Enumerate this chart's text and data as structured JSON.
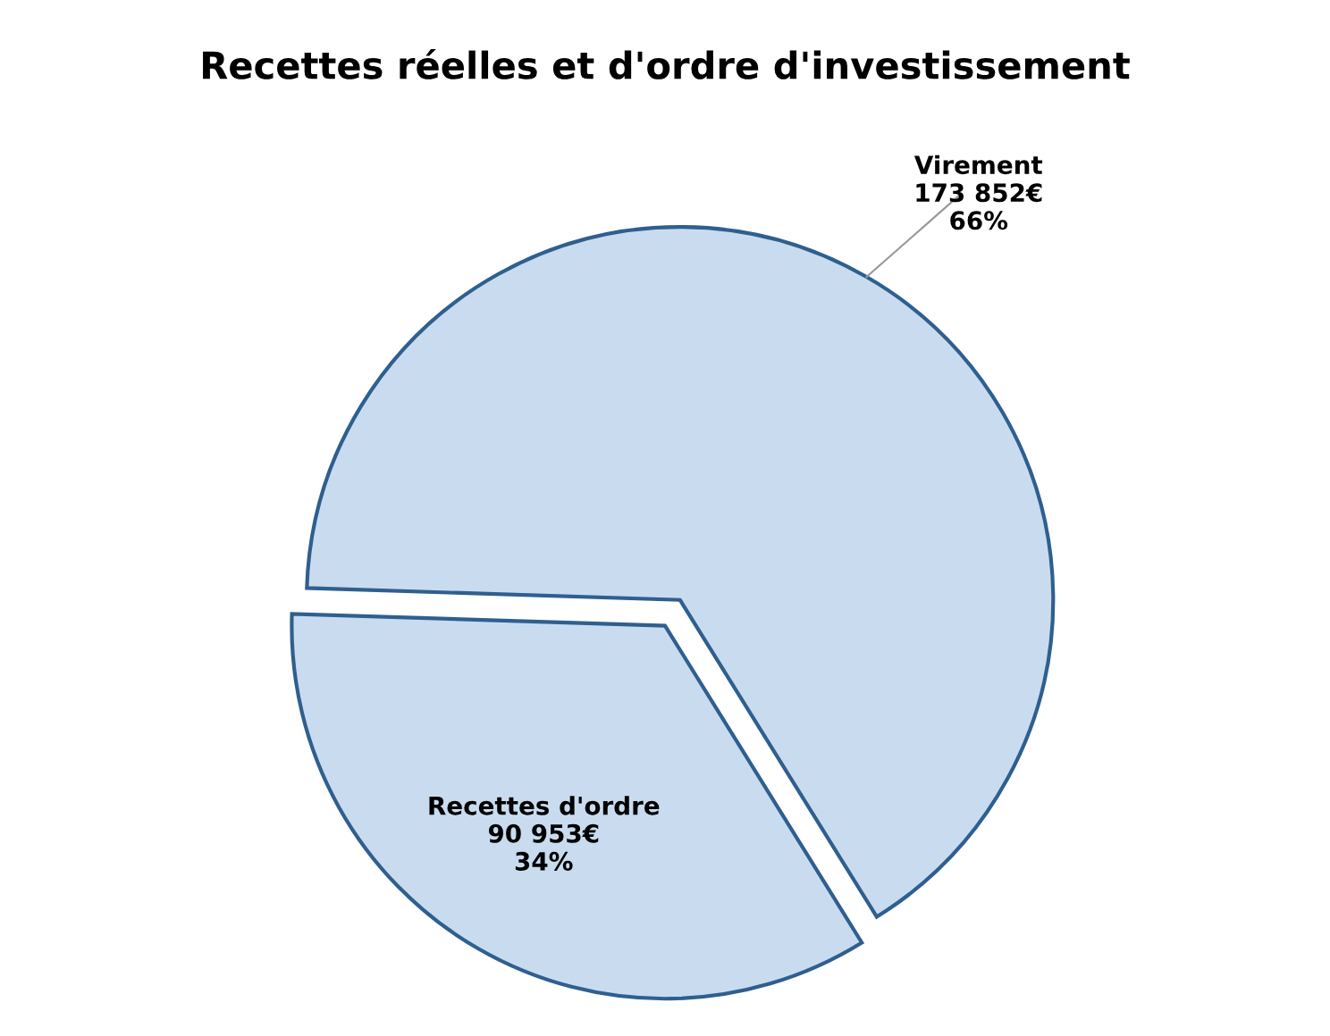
{
  "chart_data": {
    "type": "pie",
    "title": "Recettes réelles et d'ordre d'investissement",
    "categories": [
      "Virement",
      "Recettes d'ordre"
    ],
    "values": [
      173852,
      90953
    ],
    "value_labels": [
      "173 852€\n66%",
      "90 953€\n34%"
    ],
    "colors": [
      "#c9dcef",
      "#c9dcef"
    ]
  }
}
